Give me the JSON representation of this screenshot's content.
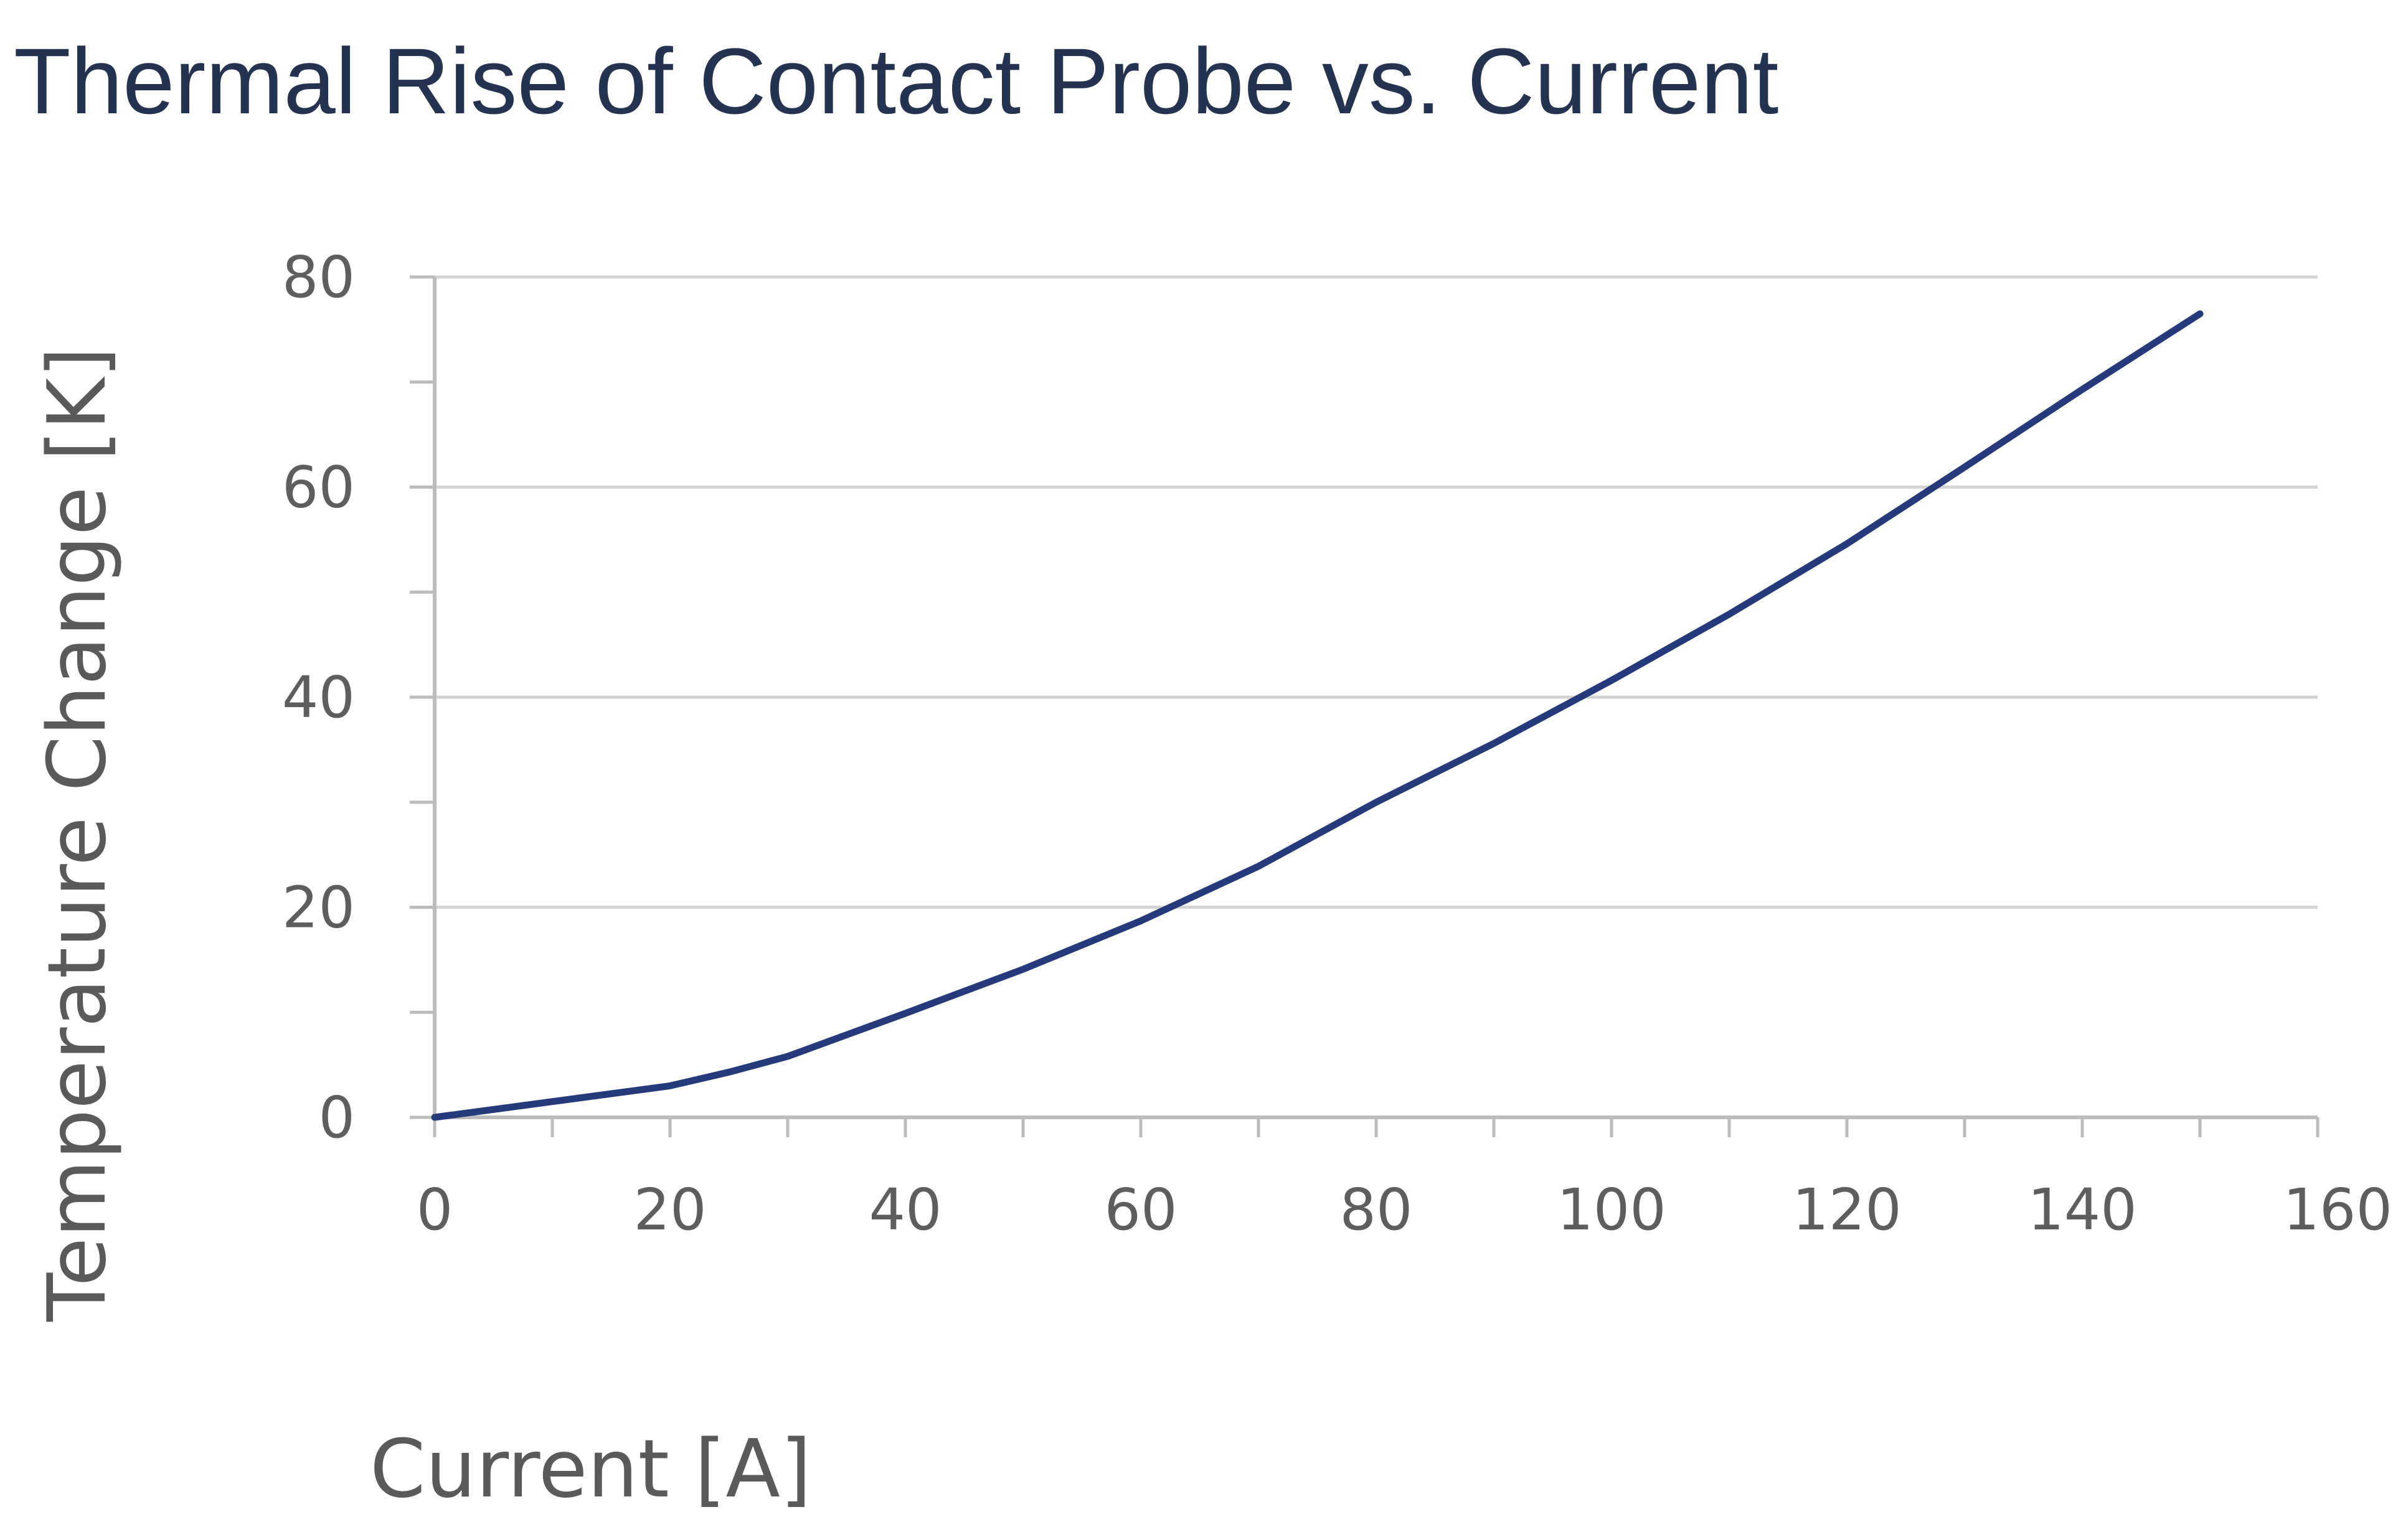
{
  "chart_data": {
    "type": "line",
    "title": "Thermal Rise of Contact Probe vs. Current",
    "xlabel": "Current [A]",
    "ylabel": "Temperature Change [K]",
    "xlim": [
      0,
      160
    ],
    "ylim": [
      0,
      80
    ],
    "x_ticks": [
      "0",
      "20",
      "40",
      "60",
      "80",
      "100",
      "120",
      "140",
      "160"
    ],
    "y_ticks": [
      "0",
      "20",
      "40",
      "60",
      "80"
    ],
    "grid": true,
    "legend": "none",
    "series": [
      {
        "color": "#253a7a",
        "x": [
          0,
          10,
          20,
          25,
          30,
          40,
          50,
          60,
          70,
          80,
          90,
          100,
          110,
          120,
          130,
          140,
          150
        ],
        "y": [
          0,
          1.5,
          3,
          4.3,
          5.8,
          9.9,
          14.1,
          18.7,
          23.9,
          30,
          35.6,
          41.6,
          47.9,
          54.6,
          61.9,
          69.3,
          76.5
        ]
      }
    ]
  }
}
